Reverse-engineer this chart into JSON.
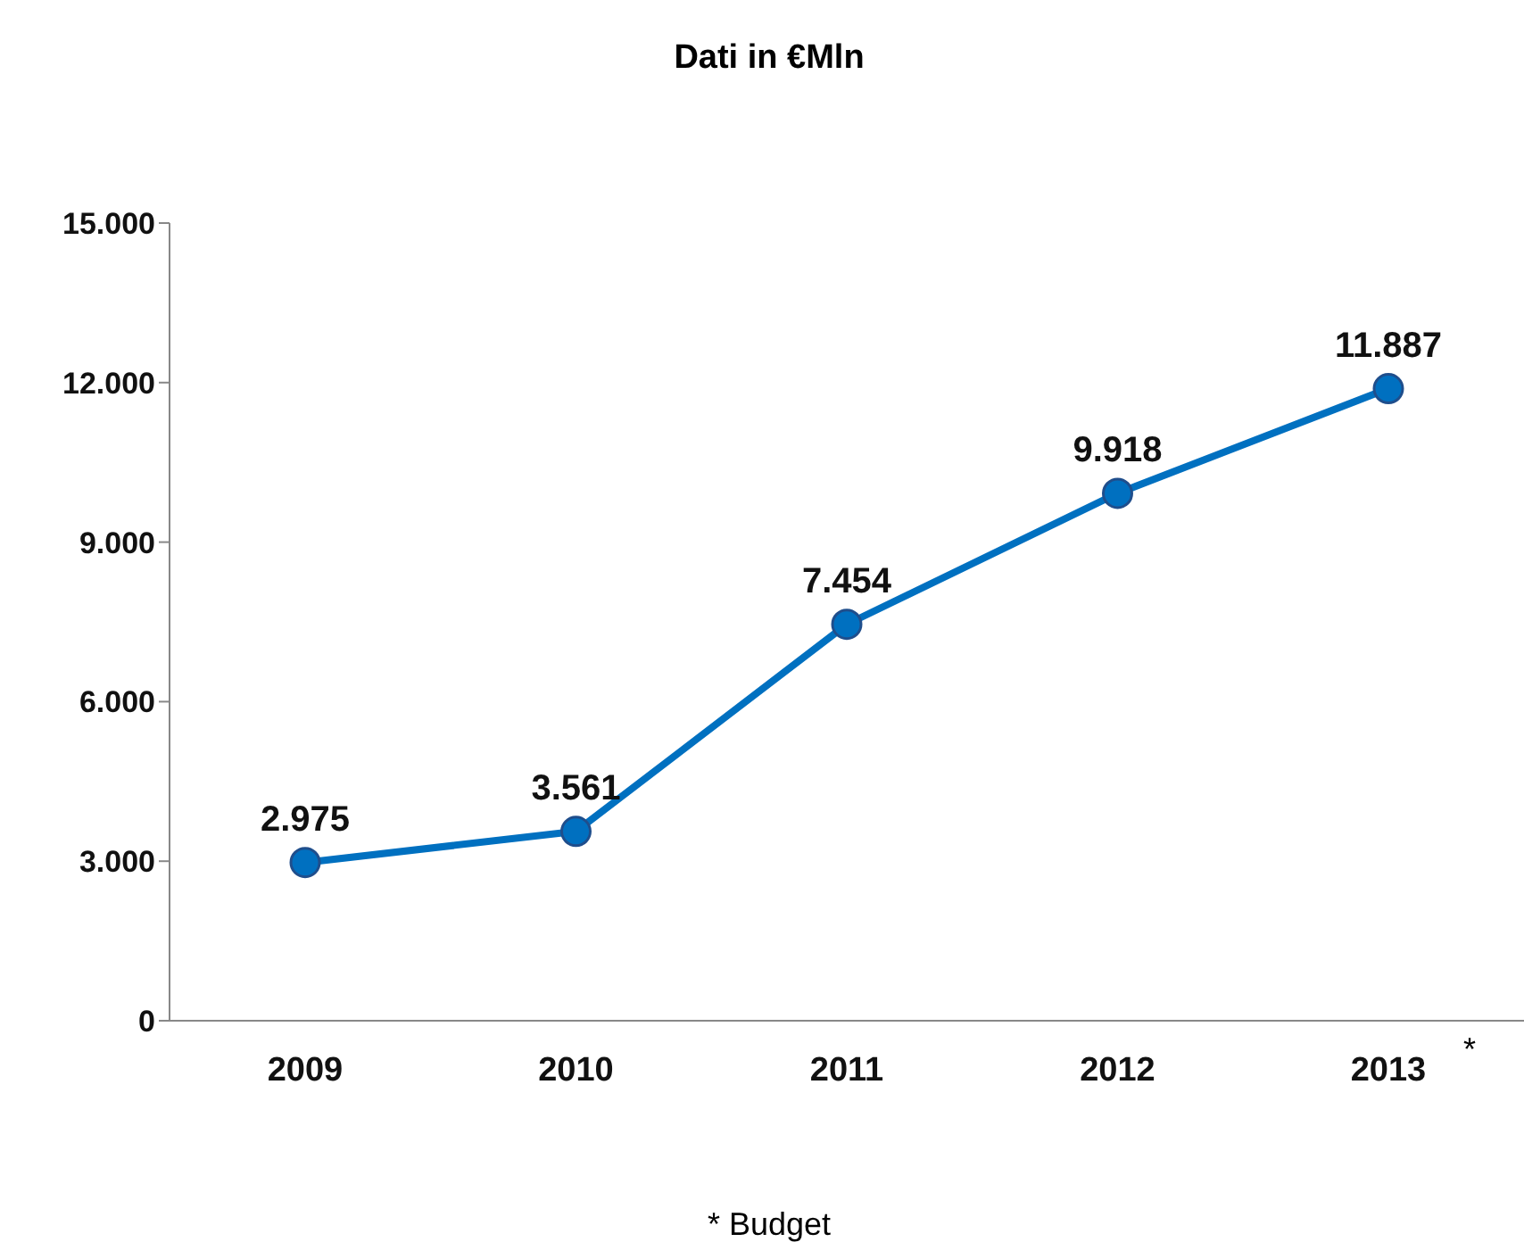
{
  "chart_data": {
    "type": "line",
    "title": "Dati in €Mln",
    "categories": [
      "2009",
      "2010",
      "2011",
      "2012",
      "2013"
    ],
    "series": [
      {
        "color": "#0070c0",
        "values": [
          2975,
          3561,
          7454,
          9918,
          11887
        ],
        "value_labels": [
          "2.975",
          "3.561",
          "7.454",
          "9.918",
          "11.887"
        ]
      }
    ],
    "ylim": [
      0,
      15000
    ],
    "yticks": [
      {
        "value": 0,
        "label": "0"
      },
      {
        "value": 3000,
        "label": "3.000"
      },
      {
        "value": 6000,
        "label": "6.000"
      },
      {
        "value": 9000,
        "label": "9.000"
      },
      {
        "value": 12000,
        "label": "12.000"
      },
      {
        "value": 15000,
        "label": "15.000"
      }
    ],
    "marker": "circle",
    "line_style": "solid",
    "annotations": [
      "*",
      "* Budget"
    ]
  }
}
